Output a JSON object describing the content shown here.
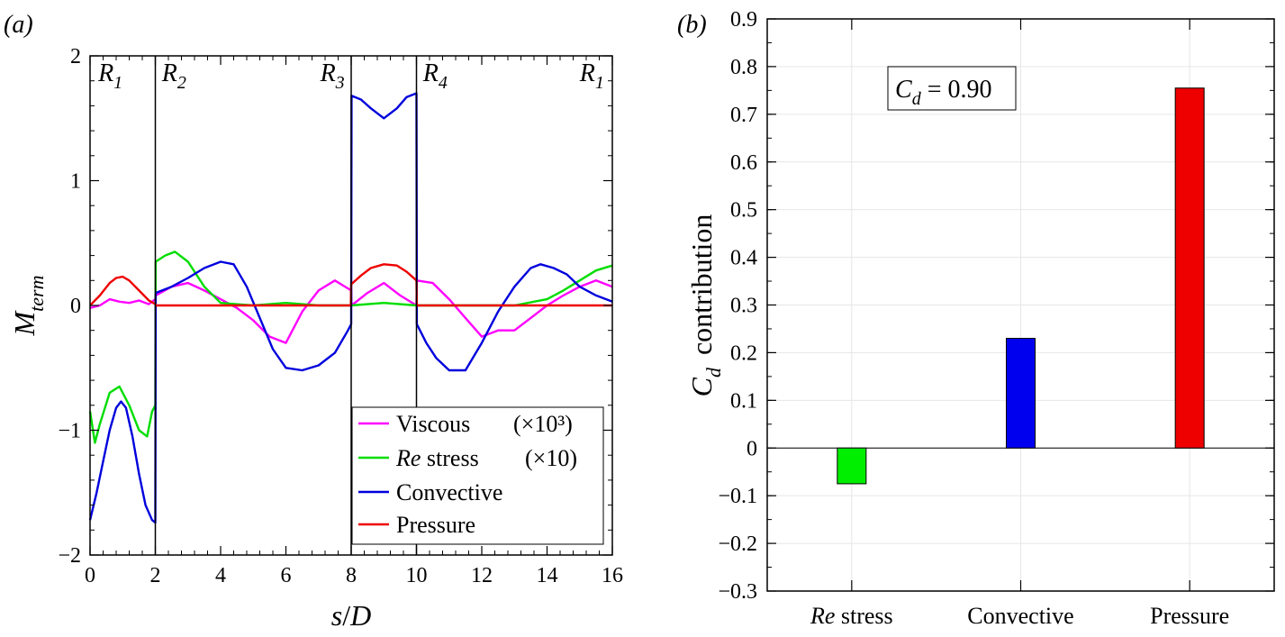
{
  "chart_data": [
    {
      "panel_label": "(a)",
      "type": "line",
      "xlabel": "s/D",
      "ylabel": "M_term",
      "xlim": [
        0,
        16
      ],
      "ylim": [
        -2,
        2
      ],
      "xticks": [
        "0",
        "2",
        "4",
        "6",
        "8",
        "10",
        "12",
        "14",
        "16"
      ],
      "yticks": [
        "−2",
        "−1",
        "0",
        "1",
        "2"
      ],
      "dividers": [
        2,
        8,
        10
      ],
      "regions": [
        {
          "main": "R",
          "sub": "1",
          "x": 0.25
        },
        {
          "main": "R",
          "sub": "2",
          "x": 2.2
        },
        {
          "main": "R",
          "sub": "3",
          "x": 7.05
        },
        {
          "main": "R",
          "sub": "4",
          "x": 10.2
        },
        {
          "main": "R",
          "sub": "1",
          "x": 15.0
        }
      ],
      "series": [
        {
          "name": "Viscous",
          "scale_label": "(×10³)",
          "color": "#ff00ff",
          "x": [
            0,
            0.3,
            0.6,
            0.9,
            1.2,
            1.5,
            1.8,
            2.0,
            2.01,
            2.5,
            3.0,
            3.5,
            4.0,
            4.5,
            5.0,
            5.5,
            6.0,
            6.5,
            7.0,
            7.5,
            8.0,
            8.01,
            8.5,
            9.0,
            9.5,
            10.0,
            10.01,
            10.5,
            11.0,
            11.5,
            12.0,
            12.5,
            13.0,
            13.5,
            14.0,
            14.5,
            15.0,
            15.5,
            16.0
          ],
          "y": [
            -0.02,
            0.0,
            0.05,
            0.03,
            0.02,
            0.04,
            0.01,
            0.05,
            0.08,
            0.15,
            0.18,
            0.12,
            0.05,
            -0.02,
            -0.12,
            -0.25,
            -0.3,
            -0.05,
            0.12,
            0.2,
            0.12,
            0.0,
            0.1,
            0.18,
            0.08,
            0.0,
            0.2,
            0.18,
            0.05,
            -0.1,
            -0.25,
            -0.2,
            -0.2,
            -0.1,
            0.0,
            0.08,
            0.15,
            0.2,
            0.15
          ]
        },
        {
          "name": "Re stress",
          "scale_label": "(×10)",
          "color": "#00dd00",
          "x": [
            0,
            0.15,
            0.3,
            0.6,
            0.9,
            1.2,
            1.5,
            1.75,
            1.9,
            2.0,
            2.01,
            2.3,
            2.6,
            3.0,
            3.5,
            4.0,
            5.0,
            6.0,
            7.0,
            8.0,
            9.0,
            10.0,
            11.0,
            12.0,
            13.0,
            14.0,
            14.5,
            15.0,
            15.5,
            16.0
          ],
          "y": [
            -0.85,
            -1.1,
            -0.95,
            -0.7,
            -0.65,
            -0.8,
            -1.0,
            -1.05,
            -0.85,
            -0.8,
            0.35,
            0.4,
            0.43,
            0.35,
            0.15,
            0.02,
            0.0,
            0.02,
            0.0,
            0.0,
            0.02,
            0.0,
            0.0,
            0.0,
            0.0,
            0.05,
            0.12,
            0.2,
            0.28,
            0.32
          ]
        },
        {
          "name": "Convective",
          "color": "#0000dd",
          "x": [
            0,
            0.2,
            0.4,
            0.6,
            0.8,
            0.95,
            1.1,
            1.3,
            1.5,
            1.7,
            1.9,
            2.0,
            2.01,
            2.5,
            3.0,
            3.5,
            4.0,
            4.4,
            4.8,
            5.2,
            5.6,
            6.0,
            6.5,
            7.0,
            7.5,
            7.9,
            8.0,
            8.01,
            8.3,
            8.6,
            9.0,
            9.4,
            9.7,
            10.0,
            10.01,
            10.3,
            10.6,
            11.0,
            11.5,
            12.0,
            12.5,
            13.0,
            13.5,
            13.8,
            14.2,
            14.6,
            15.0,
            15.5,
            16.0
          ],
          "y": [
            -1.72,
            -1.5,
            -1.25,
            -1.0,
            -0.82,
            -0.77,
            -0.82,
            -1.05,
            -1.35,
            -1.6,
            -1.72,
            -1.74,
            0.1,
            0.15,
            0.22,
            0.3,
            0.35,
            0.33,
            0.15,
            -0.1,
            -0.35,
            -0.5,
            -0.52,
            -0.48,
            -0.38,
            -0.2,
            -0.15,
            1.68,
            1.65,
            1.58,
            1.5,
            1.58,
            1.67,
            1.7,
            -0.15,
            -0.3,
            -0.42,
            -0.52,
            -0.52,
            -0.3,
            -0.05,
            0.15,
            0.3,
            0.33,
            0.3,
            0.25,
            0.15,
            0.08,
            0.03
          ]
        },
        {
          "name": "Pressure",
          "color": "#ee0000",
          "x": [
            0,
            0.3,
            0.6,
            0.8,
            1.0,
            1.2,
            1.5,
            1.8,
            2.0,
            2.01,
            3.0,
            4.0,
            5.0,
            6.0,
            7.0,
            7.99,
            8.0,
            8.3,
            8.6,
            9.0,
            9.4,
            9.7,
            10.0,
            10.01,
            11.0,
            12.0,
            13.0,
            14.0,
            15.0,
            16.0
          ],
          "y": [
            0.0,
            0.08,
            0.18,
            0.22,
            0.23,
            0.2,
            0.12,
            0.04,
            0.01,
            0.0,
            0.0,
            0.0,
            0.0,
            0.0,
            0.0,
            0.0,
            0.17,
            0.24,
            0.3,
            0.33,
            0.32,
            0.27,
            0.2,
            0.0,
            0.0,
            0.0,
            0.0,
            0.0,
            0.0,
            0.0
          ]
        }
      ]
    },
    {
      "panel_label": "(b)",
      "type": "bar",
      "ylabel_main": "C",
      "ylabel_sub": "d",
      "ylabel_rest": "contribution",
      "ylim": [
        -0.3,
        0.9
      ],
      "yticks": [
        "−0.3",
        "−0.2",
        "−0.1",
        "0",
        "0.1",
        "0.2",
        "0.3",
        "0.4",
        "0.5",
        "0.6",
        "0.7",
        "0.8",
        "0.9"
      ],
      "categories": [
        {
          "italic": "Re",
          "rest": " stress"
        },
        {
          "italic": "",
          "rest": "Convective"
        },
        {
          "italic": "",
          "rest": "Pressure"
        }
      ],
      "values": [
        -0.075,
        0.23,
        0.755
      ],
      "colors": [
        "#00ee00",
        "#0000ee",
        "#ee0000"
      ],
      "annotation": {
        "main": "C",
        "sub": "d",
        "rest": " = 0.90"
      }
    }
  ]
}
